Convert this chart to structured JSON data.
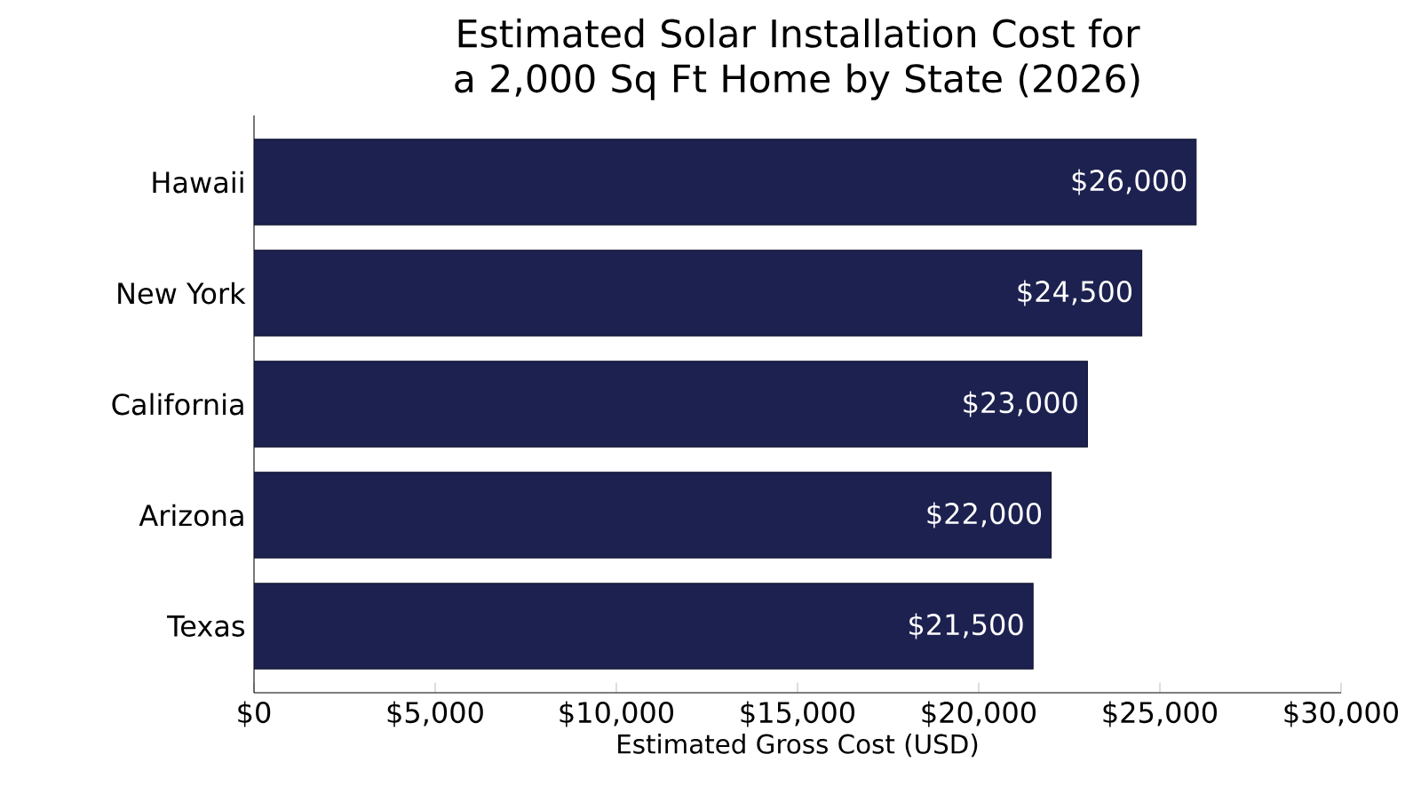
{
  "chart_data": {
    "type": "bar",
    "orientation": "horizontal",
    "title": "Estimated Solar Installation Cost for a 2,000 Sq Ft Home by State (2026)",
    "xlabel": "Estimated Gross Cost (USD)",
    "categories": [
      "Hawaii",
      "New York",
      "California",
      "Arizona",
      "Texas"
    ],
    "values": [
      26000,
      24500,
      23000,
      22000,
      21500
    ],
    "value_labels": [
      "$26,000",
      "$24,500",
      "$23,000",
      "$22,000",
      "$21,500"
    ],
    "color": "#1c2150",
    "xlim": [
      0,
      30000
    ],
    "xticks": [
      {
        "value": 0,
        "label": "$0"
      },
      {
        "value": 5000,
        "label": "$5,000"
      },
      {
        "value": 10000,
        "label": "$10,000"
      },
      {
        "value": 15000,
        "label": "$15,000"
      },
      {
        "value": 20000,
        "label": "$20,000"
      },
      {
        "value": 25000,
        "label": "$25,000"
      },
      {
        "value": 30000,
        "label": "$30,000"
      }
    ]
  }
}
